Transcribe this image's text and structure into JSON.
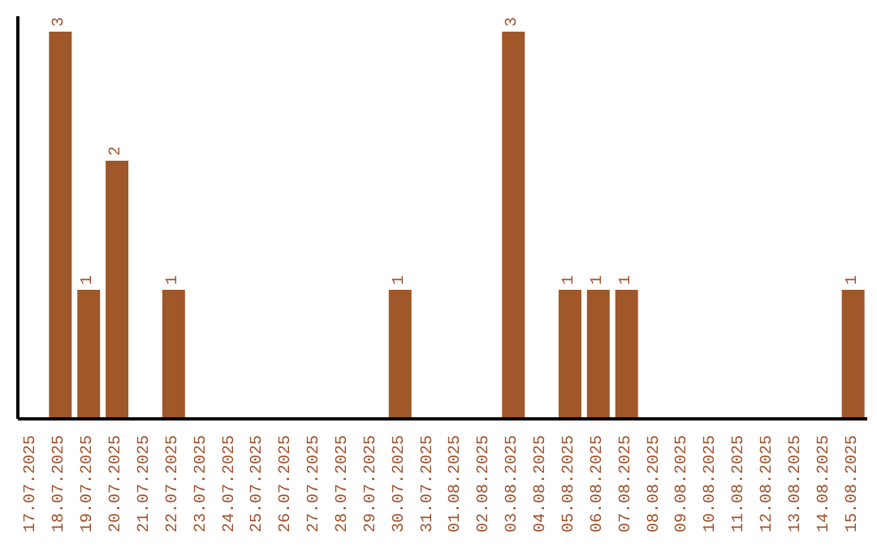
{
  "chart_data": {
    "type": "bar",
    "categories": [
      "17.07.2025",
      "18.07.2025",
      "19.07.2025",
      "20.07.2025",
      "21.07.2025",
      "22.07.2025",
      "23.07.2025",
      "24.07.2025",
      "25.07.2025",
      "26.07.2025",
      "27.07.2025",
      "28.07.2025",
      "29.07.2025",
      "30.07.2025",
      "31.07.2025",
      "01.08.2025",
      "02.08.2025",
      "03.08.2025",
      "04.08.2025",
      "05.08.2025",
      "06.08.2025",
      "07.08.2025",
      "08.08.2025",
      "09.08.2025",
      "10.08.2025",
      "11.08.2025",
      "12.08.2025",
      "13.08.2025",
      "14.08.2025",
      "15.08.2025"
    ],
    "values": [
      0,
      3,
      1,
      2,
      0,
      1,
      0,
      0,
      0,
      0,
      0,
      0,
      0,
      1,
      0,
      0,
      0,
      3,
      0,
      1,
      1,
      1,
      0,
      0,
      0,
      0,
      0,
      0,
      0,
      1
    ],
    "value_labels": [
      null,
      "3",
      "1",
      "2",
      null,
      "1",
      null,
      null,
      null,
      null,
      null,
      null,
      null,
      "1",
      null,
      null,
      null,
      "3",
      null,
      "1",
      "1",
      "1",
      null,
      null,
      null,
      null,
      null,
      null,
      null,
      "1"
    ],
    "color": "#a0572a",
    "tick_labels": "x",
    "grid": false,
    "legend": false
  }
}
